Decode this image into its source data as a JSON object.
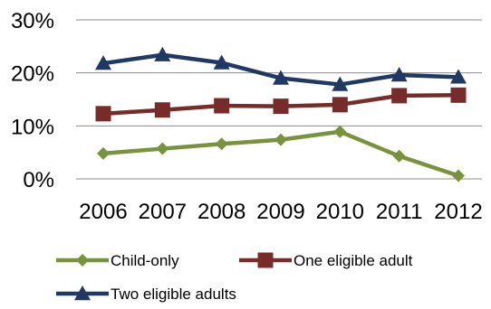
{
  "chart_data": {
    "type": "line",
    "title": "",
    "xlabel": "",
    "ylabel": "",
    "categories": [
      "2006",
      "2007",
      "2008",
      "2009",
      "2010",
      "2011",
      "2012"
    ],
    "ylim": [
      0,
      30
    ],
    "yticks": [
      0,
      10,
      20,
      30
    ],
    "ytick_labels": [
      "0%",
      "10%",
      "20%",
      "30%"
    ],
    "grid": "horizontal",
    "legend_position": "bottom",
    "series": [
      {
        "name": "Child-only",
        "marker": "diamond",
        "color": "#77933c",
        "values": [
          4.8,
          5.7,
          6.6,
          7.4,
          8.9,
          4.3,
          0.6
        ]
      },
      {
        "name": "One eligible adult",
        "marker": "square",
        "color": "#772c2a",
        "values": [
          12.3,
          13.0,
          13.8,
          13.7,
          14.0,
          15.7,
          15.8
        ]
      },
      {
        "name": "Two eligible adults",
        "marker": "triangle",
        "color": "#1f3864",
        "values": [
          21.8,
          23.4,
          21.9,
          19.0,
          17.8,
          19.6,
          19.2
        ]
      }
    ]
  }
}
